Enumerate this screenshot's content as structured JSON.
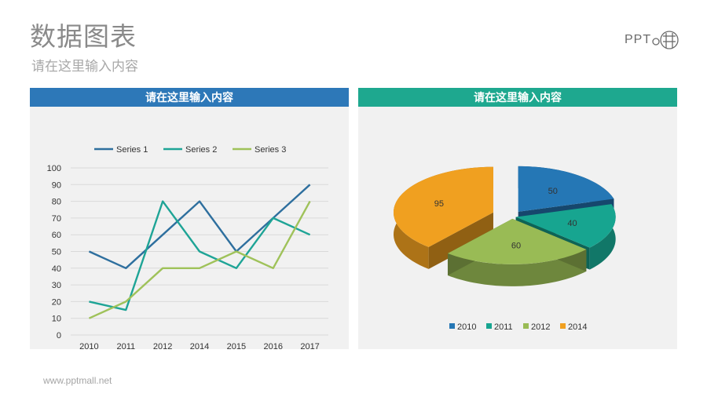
{
  "header": {
    "title": "数据图表",
    "subtitle": "请在这里输入内容",
    "logo_text": "PPT",
    "logo_glyph": "猫"
  },
  "line_panel": {
    "title": "请在这里输入内容",
    "color": "#2d78b8"
  },
  "pie_panel": {
    "title": "请在这里输入内容",
    "color": "#1ea88f"
  },
  "footer": {
    "url": "www.pptmall.net"
  },
  "chart_data": [
    {
      "type": "line",
      "categories": [
        "2010",
        "2011",
        "2012",
        "2014",
        "2015",
        "2016",
        "2017"
      ],
      "series": [
        {
          "name": "Series 1",
          "color": "#2e6f9e",
          "values": [
            50,
            40,
            60,
            80,
            50,
            70,
            90
          ]
        },
        {
          "name": "Series 2",
          "color": "#1ea496",
          "values": [
            20,
            15,
            80,
            50,
            40,
            70,
            60
          ]
        },
        {
          "name": "Series 3",
          "color": "#9fc25a",
          "values": [
            10,
            20,
            40,
            40,
            50,
            40,
            80
          ]
        }
      ],
      "ylim": [
        0,
        100
      ],
      "yticks": [
        0,
        10,
        20,
        30,
        40,
        50,
        60,
        70,
        80,
        90,
        100
      ],
      "grid": true,
      "legend": "top"
    },
    {
      "type": "pie",
      "style": "3d-exploded",
      "categories": [
        "2010",
        "2011",
        "2012",
        "2014"
      ],
      "values": [
        50,
        40,
        60,
        95
      ],
      "colors": [
        "#2577b5",
        "#17a590",
        "#99bb55",
        "#f0a020"
      ],
      "legend": "bottom"
    }
  ]
}
